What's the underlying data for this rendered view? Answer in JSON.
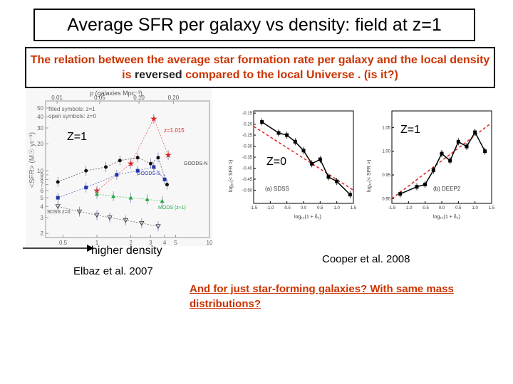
{
  "slide": {
    "title": "Average SFR per galaxy vs density: field at z=1",
    "subtitle_part1": "The relation between the average star formation rate per galaxy and the local density is ",
    "subtitle_highlight": "reversed",
    "subtitle_part2": " compared to the local Universe . (is it?)",
    "left_figure": {
      "z_label": "Z=1",
      "top_axis_label": "ρ (galaxies Mpc⁻³)",
      "top_ticks": [
        "0.01",
        "0.05",
        "0.10",
        "0.20"
      ],
      "y_axis_label": "<SFR> (M☉ yr⁻¹)",
      "y_ticks": [
        "50",
        "40",
        "30",
        "20",
        "10",
        "9",
        "8",
        "7",
        "6",
        "5",
        "4",
        "3",
        "2"
      ],
      "bottom_ticks": [
        "0.5",
        "1",
        "2",
        "3",
        "4",
        "5",
        "10"
      ],
      "legend_filled": "filled symbols: z=1",
      "legend_open": "open symbols: z=0",
      "labels": [
        "z=1.015",
        "GOODS-N",
        "GOODS-S",
        "SDSS z=0",
        "MODS (z≈1)"
      ],
      "caption": "Elbaz et al. 2007",
      "arrow_label": "higher density"
    },
    "right_figure": {
      "z1_label": "Z=1",
      "z0_label": "Z=0",
      "panel_a_label": "(a)  SDSS",
      "panel_b_label": "(b)  DEEP2",
      "y_label_a": "log₁₀(< SFR >)",
      "y_label_b": "log₁₀(< SFR >)",
      "x_label": "log₁₀(1 + δ₃)",
      "caption": "Cooper et al. 2008"
    },
    "question": "And for just star-forming galaxies? With same mass distributions?"
  },
  "chart_data": [
    {
      "type": "scatter",
      "title": "",
      "xlabel": "",
      "ylabel": "<SFR> (M☉ yr⁻¹)",
      "xscale": "log",
      "yscale": "log",
      "xlim": [
        0.35,
        10
      ],
      "ylim": [
        1.8,
        60
      ],
      "x_ticks": [
        "0.5",
        "1",
        "2",
        "3",
        "4",
        "5",
        "10"
      ],
      "series": [
        {
          "name": "z=1.015",
          "color": "#dd2222",
          "x": [
            1.0,
            2.0,
            3.2,
            4.3
          ],
          "y": [
            6,
            12,
            38,
            15
          ]
        },
        {
          "name": "GOODS-N",
          "color": "#111111",
          "x": [
            0.45,
            0.8,
            1.2,
            1.6,
            2.3,
            3.0,
            3.5,
            4.2
          ],
          "y": [
            7.5,
            10,
            11,
            13,
            14,
            12,
            14,
            7
          ]
        },
        {
          "name": "GOODS-S",
          "color": "#2233aa",
          "x": [
            0.45,
            0.8,
            1.5,
            2.3,
            3.2,
            4.0
          ],
          "y": [
            5,
            6.5,
            9,
            10,
            11,
            8
          ]
        },
        {
          "name": "MODS (z≈1)",
          "color": "#22aa44",
          "x": [
            1.0,
            1.4,
            2.0,
            2.8,
            3.8
          ],
          "y": [
            5.5,
            5.2,
            5.0,
            4.8,
            4.6
          ]
        },
        {
          "name": "SDSS z=0",
          "color": "#333333",
          "x": [
            0.45,
            0.7,
            1.0,
            1.3,
            1.8,
            2.5,
            3.5
          ],
          "y": [
            4.0,
            3.5,
            3.2,
            3.0,
            2.8,
            2.6,
            2.4
          ]
        }
      ]
    },
    {
      "type": "line",
      "title": "",
      "name": "SDSS",
      "xlabel": "log₁₀(1 + δ₃)",
      "ylabel": "log₁₀(< SFR >)",
      "xlim": [
        -1.5,
        1.5
      ],
      "ylim": [
        -0.56,
        -0.14
      ],
      "x_ticks": [
        -1.5,
        -1.0,
        -0.5,
        0.0,
        0.5,
        1.0,
        1.5
      ],
      "y_ticks": [
        -0.15,
        -0.2,
        -0.25,
        -0.3,
        -0.35,
        -0.4,
        -0.45,
        -0.5
      ],
      "x": [
        -1.25,
        -0.75,
        -0.5,
        -0.25,
        0.0,
        0.25,
        0.5,
        0.75,
        1.0,
        1.4
      ],
      "y": [
        -0.19,
        -0.24,
        -0.25,
        -0.28,
        -0.32,
        -0.38,
        -0.36,
        -0.44,
        -0.46,
        -0.52
      ],
      "fit": {
        "x": [
          -1.5,
          1.5
        ],
        "y": [
          -0.21,
          -0.5
        ]
      }
    },
    {
      "type": "line",
      "title": "",
      "name": "DEEP2",
      "xlabel": "log₁₀(1 + δ₃)",
      "ylabel": "log₁₀(< SFR >)",
      "xlim": [
        -1.5,
        1.5
      ],
      "ylim": [
        0.89,
        1.085
      ],
      "x_ticks": [
        -1.5,
        -1.0,
        -0.5,
        0.0,
        0.5,
        1.0,
        1.5
      ],
      "y_ticks": [
        0.9,
        0.95,
        1.0,
        1.05
      ],
      "x": [
        -1.25,
        -0.75,
        -0.5,
        -0.25,
        0.0,
        0.25,
        0.5,
        0.75,
        1.0,
        1.3
      ],
      "y": [
        0.91,
        0.925,
        0.93,
        0.96,
        0.995,
        0.98,
        1.02,
        1.01,
        1.04,
        1.0
      ],
      "fit": {
        "x": [
          -1.5,
          1.5
        ],
        "y": [
          0.9,
          1.06
        ]
      }
    }
  ]
}
